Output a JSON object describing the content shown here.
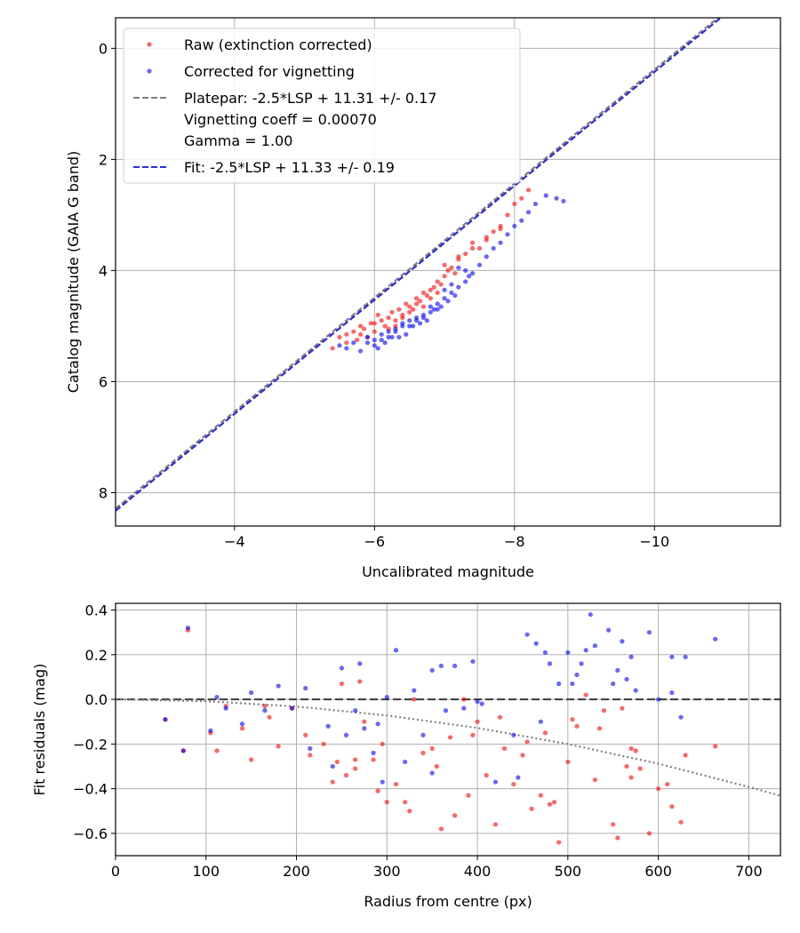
{
  "chart_data": [
    {
      "type": "scatter",
      "xlabel": "Uncalibrated magnitude",
      "ylabel": "Catalog magnitude (GAIA G band)",
      "xlim": [
        -2.3,
        -11.8
      ],
      "ylim": [
        8.6,
        -0.55
      ],
      "x_inverted": true,
      "y_inverted": true,
      "xticks": [
        -4,
        -6,
        -8,
        -10
      ],
      "xtick_labels": [
        "−4",
        "−6",
        "−8",
        "−10"
      ],
      "yticks": [
        0,
        2,
        4,
        6,
        8
      ],
      "ytick_labels": [
        "0",
        "2",
        "4",
        "6",
        "8"
      ],
      "grid": true,
      "legend_position": "top-left",
      "series": [
        {
          "name": "Raw (extinction corrected)",
          "kind": "scatter",
          "color": "#ff0000",
          "x": [
            -5.4,
            -5.5,
            -5.6,
            -5.7,
            -5.75,
            -5.8,
            -5.85,
            -5.9,
            -5.95,
            -6.0,
            -6.05,
            -6.1,
            -6.15,
            -6.2,
            -6.25,
            -6.3,
            -6.35,
            -6.4,
            -6.45,
            -6.5,
            -6.55,
            -6.6,
            -6.65,
            -6.7,
            -6.75,
            -6.8,
            -6.85,
            -6.9,
            -6.95,
            -7.0,
            -7.05,
            -7.1,
            -7.15,
            -7.2,
            -7.3,
            -7.4,
            -7.5,
            -7.6,
            -7.7,
            -7.8,
            -7.9,
            -8.0,
            -8.1,
            -8.2,
            -5.6,
            -5.8,
            -6.0,
            -6.2,
            -6.4,
            -6.6,
            -6.8,
            -7.0,
            -7.2,
            -7.4,
            -7.6,
            -7.8,
            -6.9,
            -6.7,
            -6.5,
            -6.3
          ],
          "y": [
            5.4,
            5.2,
            5.15,
            5.1,
            5.25,
            5.0,
            5.05,
            5.2,
            4.95,
            5.1,
            4.8,
            4.9,
            5.0,
            4.85,
            4.75,
            4.9,
            4.7,
            4.8,
            4.6,
            4.65,
            4.7,
            4.5,
            4.55,
            4.4,
            4.45,
            4.35,
            4.3,
            4.2,
            4.25,
            4.1,
            4.0,
            3.95,
            4.05,
            3.8,
            3.7,
            3.5,
            3.6,
            3.45,
            3.3,
            3.2,
            3.0,
            2.8,
            2.7,
            2.55,
            5.3,
            5.15,
            4.95,
            5.05,
            4.85,
            4.6,
            4.5,
            3.9,
            3.75,
            3.6,
            3.4,
            3.25,
            4.4,
            4.65,
            4.75,
            5.0
          ]
        },
        {
          "name": "Corrected for vignetting",
          "kind": "scatter",
          "color": "#0000ff",
          "x": [
            -5.5,
            -5.6,
            -5.7,
            -5.8,
            -5.9,
            -6.0,
            -6.05,
            -6.1,
            -6.15,
            -6.2,
            -6.25,
            -6.3,
            -6.35,
            -6.4,
            -6.45,
            -6.5,
            -6.55,
            -6.6,
            -6.65,
            -6.7,
            -6.75,
            -6.8,
            -6.85,
            -6.9,
            -6.95,
            -7.0,
            -7.05,
            -7.1,
            -7.15,
            -7.2,
            -7.3,
            -7.35,
            -7.4,
            -7.5,
            -7.6,
            -7.7,
            -7.8,
            -7.9,
            -8.0,
            -8.1,
            -8.2,
            -8.3,
            -8.45,
            -8.6,
            -8.7,
            -5.9,
            -6.1,
            -6.3,
            -6.5,
            -6.7,
            -6.9,
            -7.1,
            -7.3,
            -6.0,
            -6.2,
            -6.4,
            -6.6,
            -6.8,
            -7.0,
            -7.2
          ],
          "y": [
            5.35,
            5.4,
            5.3,
            5.45,
            5.2,
            5.25,
            5.4,
            5.15,
            5.3,
            5.1,
            5.2,
            5.05,
            5.2,
            4.95,
            5.15,
            4.9,
            5.0,
            4.85,
            4.95,
            4.8,
            4.9,
            4.75,
            4.7,
            4.6,
            4.65,
            4.5,
            4.55,
            4.4,
            4.45,
            4.3,
            4.2,
            4.1,
            4.05,
            3.9,
            3.75,
            3.6,
            3.5,
            3.35,
            3.2,
            3.1,
            2.95,
            2.8,
            2.65,
            2.7,
            2.75,
            5.3,
            5.25,
            5.1,
            5.0,
            4.85,
            4.7,
            4.25,
            4.0,
            5.35,
            5.2,
            5.0,
            4.9,
            4.65,
            4.35,
            3.95
          ]
        },
        {
          "name": "Platepar: -2.5*LSP + 11.31 +/- 0.17\nVignetting coeff = 0.00070\nGamma = 1.00",
          "kind": "line",
          "color": "#7f7f7f",
          "dash": "6,3",
          "x": [
            -2.3,
            -11.8
          ],
          "y": [
            8.285,
            -1.465
          ]
        },
        {
          "name": "Fit: -2.5*LSP + 11.33 +/- 0.19",
          "kind": "line",
          "color": "#2b2bdc",
          "dash": "7,3",
          "x": [
            -2.3,
            -11.8
          ],
          "y": [
            8.325,
            -1.425
          ]
        }
      ],
      "legend": [
        {
          "label": "Raw (extinction corrected)",
          "marker": "dot",
          "color": "#ff0000"
        },
        {
          "label": "Corrected for vignetting",
          "marker": "dot",
          "color": "#0000ff"
        },
        {
          "label": "Platepar: -2.5*LSP + 11.31 +/- 0.17",
          "marker": "dash",
          "color": "#7f7f7f"
        },
        {
          "label": "Vignetting coeff = 0.00070",
          "marker": "none",
          "color": "#7f7f7f"
        },
        {
          "label": "Gamma = 1.00",
          "marker": "none",
          "color": "#7f7f7f"
        },
        {
          "label": "Fit: -2.5*LSP + 11.33 +/- 0.19",
          "marker": "dash",
          "color": "#2b2bdc"
        }
      ]
    },
    {
      "type": "scatter",
      "xlabel": "Radius from centre (px)",
      "ylabel": "Fit residuals (mag)",
      "xlim": [
        0,
        735
      ],
      "ylim": [
        -0.7,
        0.43
      ],
      "xticks": [
        0,
        100,
        200,
        300,
        400,
        500,
        600,
        700
      ],
      "xtick_labels": [
        "0",
        "100",
        "200",
        "300",
        "400",
        "500",
        "600",
        "700"
      ],
      "yticks": [
        0.4,
        0.2,
        0.0,
        -0.2,
        -0.4,
        -0.6
      ],
      "ytick_labels": [
        "0.4",
        "0.2",
        "0.0",
        "−0.2",
        "−0.4",
        "−0.6"
      ],
      "grid": true,
      "series": [
        {
          "name": "Raw (extinction corrected)",
          "kind": "scatter",
          "color": "#ff0000",
          "x": [
            55,
            75,
            80,
            105,
            112,
            122,
            140,
            150,
            165,
            180,
            195,
            210,
            215,
            240,
            250,
            255,
            265,
            270,
            275,
            285,
            290,
            300,
            310,
            320,
            330,
            340,
            350,
            360,
            370,
            375,
            385,
            390,
            400,
            410,
            420,
            430,
            440,
            450,
            460,
            470,
            480,
            485,
            490,
            500,
            510,
            520,
            530,
            540,
            550,
            555,
            560,
            565,
            570,
            575,
            580,
            590,
            600,
            610,
            615,
            625,
            630,
            663,
            245,
            265,
            295,
            325,
            355,
            395,
            425,
            455,
            475,
            505,
            535,
            570,
            170,
            230
          ],
          "y": [
            -0.09,
            -0.23,
            0.31,
            -0.15,
            -0.23,
            -0.03,
            -0.13,
            -0.27,
            -0.03,
            -0.21,
            -0.04,
            -0.16,
            -0.25,
            -0.37,
            0.07,
            -0.34,
            -0.27,
            0.08,
            -0.1,
            -0.27,
            -0.41,
            -0.46,
            -0.38,
            -0.46,
            0.0,
            -0.24,
            -0.22,
            -0.58,
            -0.17,
            -0.52,
            0.0,
            -0.43,
            -0.1,
            -0.34,
            -0.56,
            -0.22,
            -0.38,
            -0.25,
            -0.49,
            -0.43,
            -0.47,
            -0.46,
            -0.64,
            -0.28,
            -0.12,
            0.02,
            -0.36,
            -0.05,
            -0.56,
            -0.62,
            -0.04,
            -0.3,
            -0.35,
            -0.23,
            -0.31,
            -0.6,
            -0.4,
            -0.38,
            -0.48,
            -0.55,
            -0.25,
            -0.21,
            -0.28,
            -0.31,
            -0.2,
            -0.5,
            -0.3,
            -0.16,
            -0.08,
            -0.19,
            -0.15,
            -0.09,
            -0.13,
            -0.22,
            -0.08,
            -0.2
          ]
        },
        {
          "name": "Corrected for vignetting",
          "kind": "scatter",
          "color": "#0000ff",
          "x": [
            55,
            75,
            80,
            105,
            112,
            122,
            140,
            150,
            165,
            180,
            195,
            210,
            215,
            240,
            250,
            255,
            265,
            270,
            275,
            285,
            295,
            300,
            310,
            320,
            330,
            340,
            350,
            360,
            365,
            375,
            385,
            395,
            405,
            420,
            440,
            445,
            455,
            465,
            475,
            480,
            490,
            500,
            510,
            515,
            520,
            525,
            530,
            545,
            555,
            560,
            565,
            570,
            575,
            590,
            600,
            615,
            625,
            630,
            663,
            235,
            290,
            350,
            400,
            470,
            505,
            550,
            615
          ],
          "y": [
            -0.09,
            -0.23,
            0.32,
            -0.14,
            0.01,
            -0.04,
            -0.11,
            0.03,
            -0.05,
            0.06,
            -0.04,
            0.05,
            -0.22,
            -0.3,
            0.14,
            -0.16,
            -0.05,
            0.16,
            -0.13,
            -0.24,
            -0.37,
            0.01,
            0.22,
            -0.28,
            0.04,
            -0.16,
            0.13,
            0.15,
            -0.05,
            0.15,
            -0.04,
            0.17,
            -0.02,
            -0.37,
            -0.16,
            -0.35,
            0.29,
            0.25,
            0.21,
            0.16,
            0.07,
            0.21,
            0.11,
            0.16,
            0.22,
            0.38,
            0.24,
            0.31,
            0.13,
            0.26,
            0.09,
            0.19,
            0.04,
            0.3,
            0.0,
            0.19,
            -0.08,
            0.19,
            0.27,
            -0.12,
            -0.11,
            -0.33,
            -0.01,
            -0.1,
            0.07,
            0.07,
            0.03
          ]
        },
        {
          "name": "",
          "kind": "line",
          "color": "#444444",
          "dash": "9,4",
          "x": [
            0,
            735
          ],
          "y": [
            0.0,
            0.0
          ]
        },
        {
          "name": "",
          "kind": "line",
          "color": "#808080",
          "dash": "2,3",
          "x": [
            0,
            100,
            200,
            300,
            400,
            500,
            600,
            700,
            735
          ],
          "y": [
            0.0,
            -0.008,
            -0.032,
            -0.072,
            -0.128,
            -0.2,
            -0.288,
            -0.392,
            -0.432
          ]
        }
      ]
    }
  ]
}
